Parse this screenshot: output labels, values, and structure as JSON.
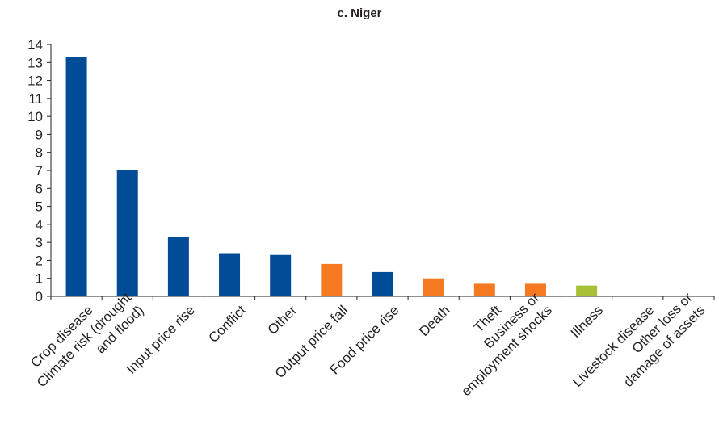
{
  "chart_data": {
    "type": "bar",
    "title": "c. Niger",
    "xlabel": "",
    "ylabel": "",
    "ylim": [
      0,
      14
    ],
    "yticks": [
      0,
      1,
      2,
      3,
      4,
      5,
      6,
      7,
      8,
      9,
      10,
      11,
      12,
      13,
      14
    ],
    "grid": false,
    "categories": [
      [
        "Crop disease"
      ],
      [
        "Climate risk (drought",
        "and flood)"
      ],
      [
        "Input price rise"
      ],
      [
        "Conflict"
      ],
      [
        "Other"
      ],
      [
        "Output price fall"
      ],
      [
        "Food price rise"
      ],
      [
        "Death"
      ],
      [
        "Theft"
      ],
      [
        "Business or",
        "employment shocks"
      ],
      [
        "Illness"
      ],
      [
        "Livestock disease"
      ],
      [
        "Other loss or",
        "damage of assets"
      ]
    ],
    "values": [
      13.3,
      7.0,
      3.3,
      2.4,
      2.3,
      1.8,
      1.35,
      1.0,
      0.7,
      0.7,
      0.6,
      0,
      0
    ],
    "colors": [
      "#004c97",
      "#004c97",
      "#004c97",
      "#004c97",
      "#004c97",
      "#f47920",
      "#004c97",
      "#f47920",
      "#f47920",
      "#f47920",
      "#a6c136",
      "#004c97",
      "#004c97"
    ]
  }
}
